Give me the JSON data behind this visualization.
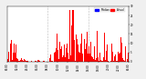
{
  "background_color": "#f0f0f0",
  "plot_bg_color": "#ffffff",
  "bar_color": "#ff0000",
  "median_color": "#0000ff",
  "legend_actual_color": "#ff0000",
  "legend_median_color": "#0000ff",
  "legend_actual": "Actual",
  "legend_median": "Median",
  "ylim": [
    0,
    30
  ],
  "num_minutes": 1440,
  "yticks": [
    0,
    5,
    10,
    15,
    20,
    25,
    30
  ],
  "tick_interval_minutes": 120,
  "vline_positions": [
    480,
    960
  ],
  "figsize": [
    1.6,
    0.87
  ],
  "dpi": 100
}
